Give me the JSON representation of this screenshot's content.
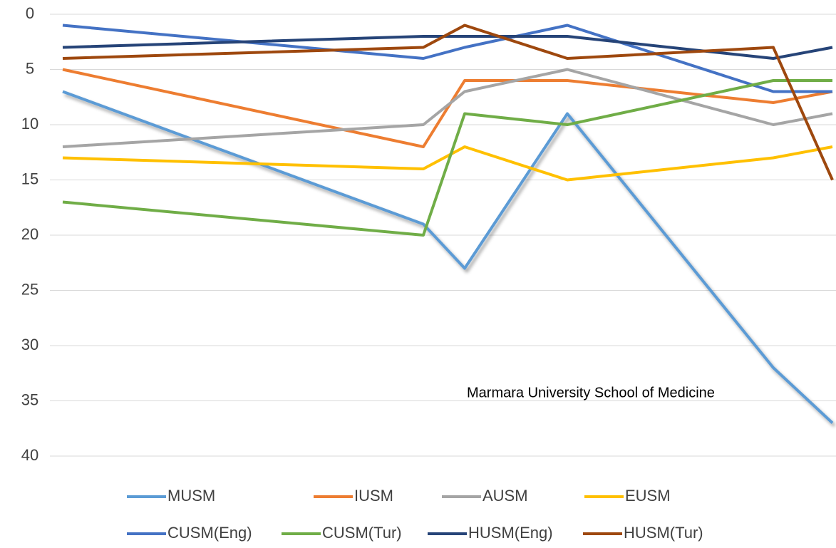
{
  "chart_data": {
    "type": "line",
    "annotation": "Marmara University School of Medicine",
    "categories": [
      null,
      null,
      null,
      null,
      null,
      null
    ],
    "ylim": [
      0,
      40
    ],
    "y_inverted": true,
    "yticks": [
      0,
      5,
      10,
      15,
      20,
      25,
      30,
      35,
      40
    ],
    "grid": true,
    "legend": "bottom",
    "series": [
      {
        "name": "MUSM",
        "color": "#5b9bd5",
        "shadow": true,
        "values": [
          7,
          19,
          23,
          9,
          32,
          37
        ]
      },
      {
        "name": "IUSM",
        "color": "#ed7d31",
        "values": [
          5,
          12,
          6,
          6,
          8,
          7
        ]
      },
      {
        "name": "AUSM",
        "color": "#a5a5a5",
        "values": [
          12,
          10,
          7,
          5,
          10,
          9
        ]
      },
      {
        "name": "EUSM",
        "color": "#ffc000",
        "values": [
          13,
          14,
          12,
          15,
          13,
          12
        ]
      },
      {
        "name": "CUSM(Eng)",
        "color": "#4472c4",
        "values": [
          1,
          4,
          3,
          1,
          7,
          7
        ]
      },
      {
        "name": "CUSM(Tur)",
        "color": "#70ad47",
        "values": [
          17,
          20,
          9,
          10,
          6,
          6
        ]
      },
      {
        "name": "HUSM(Eng)",
        "color": "#264478",
        "values": [
          3,
          2,
          2,
          2,
          4,
          3
        ]
      },
      {
        "name": "HUSM(Tur)",
        "color": "#9e480e",
        "values": [
          4,
          3,
          1,
          4,
          3,
          15
        ]
      }
    ]
  }
}
